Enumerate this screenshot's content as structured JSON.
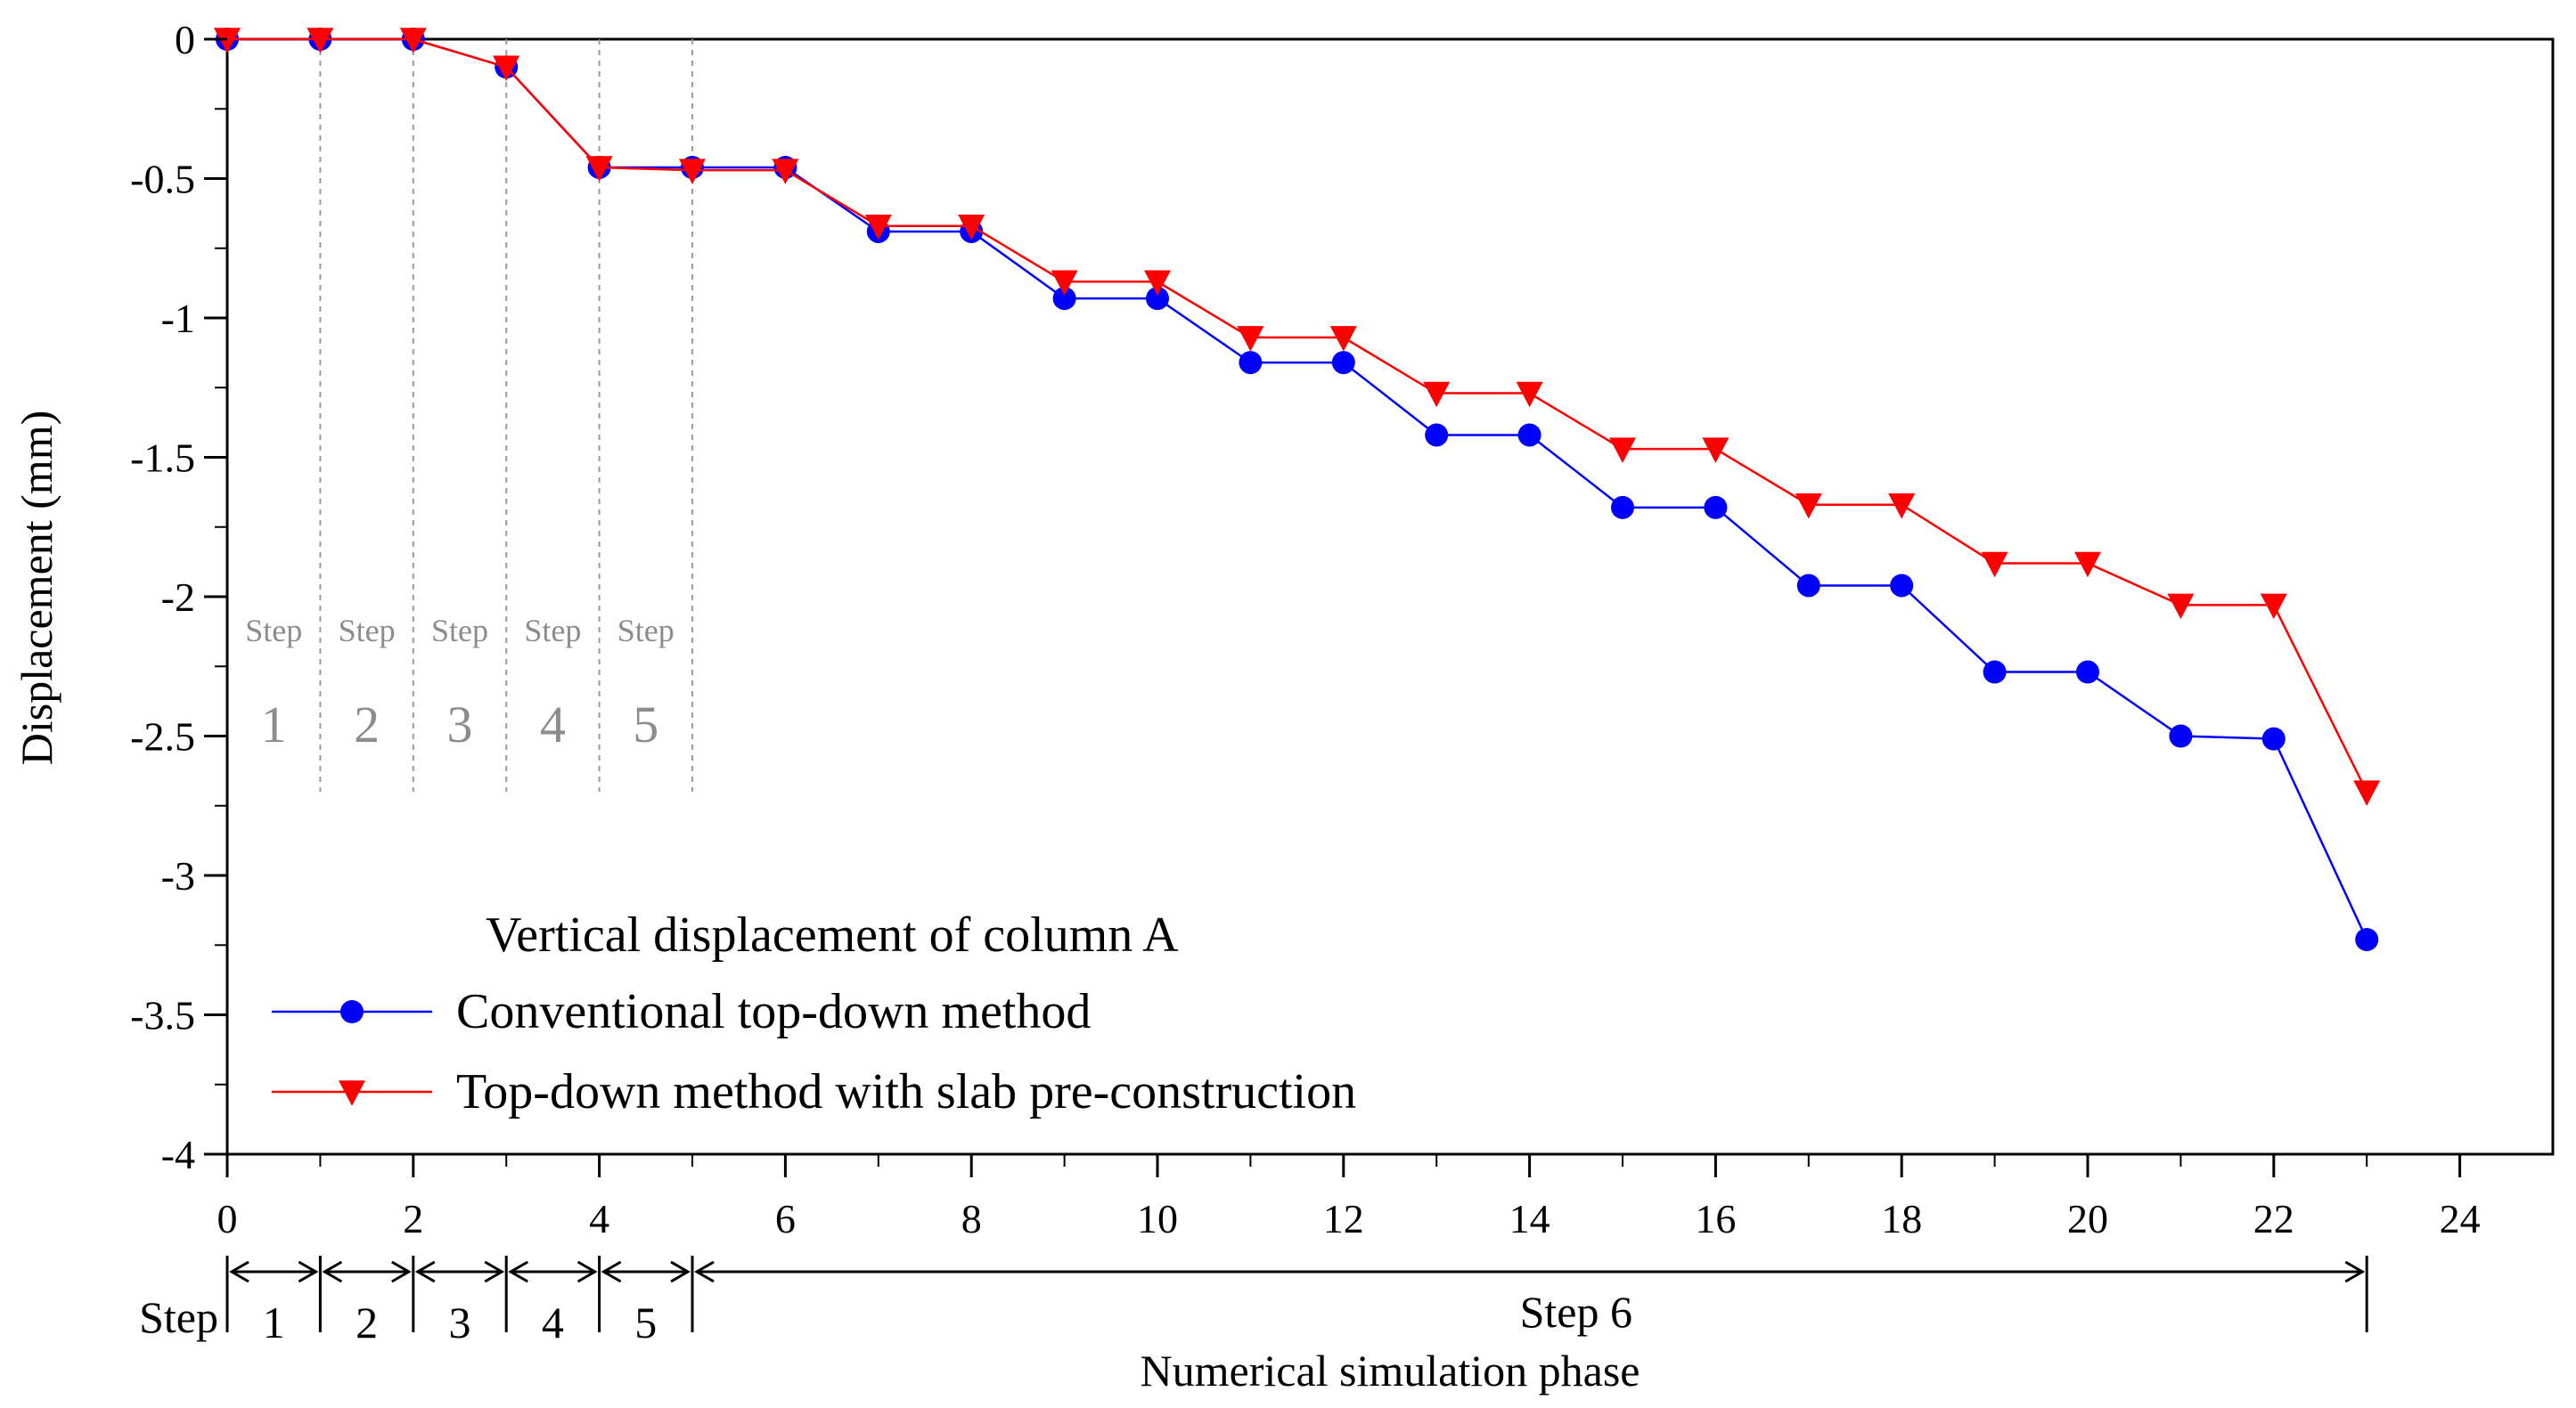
{
  "chart_data": {
    "type": "line",
    "title": "",
    "xlabel": "Numerical simulation phase",
    "ylabel": "Displacement (mm)",
    "xlim": [
      0,
      25
    ],
    "ylim": [
      -4,
      0
    ],
    "x_ticks": [
      "0",
      "2",
      "4",
      "6",
      "8",
      "10",
      "12",
      "14",
      "16",
      "18",
      "20",
      "22",
      "24"
    ],
    "x_tick_values": [
      0,
      2,
      4,
      6,
      8,
      10,
      12,
      14,
      16,
      18,
      20,
      22,
      24
    ],
    "y_ticks": [
      "0",
      "-0.5",
      "-1",
      "-1.5",
      "-2",
      "-2.5",
      "-3",
      "-3.5",
      "-4"
    ],
    "y_tick_values": [
      0,
      -0.5,
      -1,
      -1.5,
      -2,
      -2.5,
      -3,
      -3.5,
      -4
    ],
    "x": [
      0,
      1,
      2,
      3,
      4,
      5,
      6,
      7,
      8,
      9,
      10,
      11,
      12,
      13,
      14,
      15,
      16,
      17,
      18,
      19,
      20,
      21,
      22,
      23
    ],
    "series": [
      {
        "name": "Conventional top-down method",
        "color": "#0000ff",
        "marker": "circle",
        "values": [
          0,
          0,
          0,
          -0.1,
          -0.46,
          -0.46,
          -0.46,
          -0.69,
          -0.69,
          -0.93,
          -0.93,
          -1.16,
          -1.16,
          -1.42,
          -1.42,
          -1.68,
          -1.68,
          -1.96,
          -1.96,
          -2.27,
          -2.27,
          -2.5,
          -2.51,
          -3.23
        ]
      },
      {
        "name": "Top-down method with slab pre-construction",
        "color": "#ff0000",
        "marker": "triangle-down",
        "values": [
          0,
          0,
          0,
          -0.1,
          -0.46,
          -0.47,
          -0.47,
          -0.67,
          -0.67,
          -0.87,
          -0.87,
          -1.07,
          -1.07,
          -1.27,
          -1.27,
          -1.47,
          -1.47,
          -1.67,
          -1.67,
          -1.88,
          -1.88,
          -2.03,
          -2.03,
          -2.7
        ]
      }
    ],
    "legend_title": "Vertical displacement of column A",
    "legend_position": "bottom-left",
    "step_boundaries": [
      1,
      2,
      3,
      4,
      5
    ],
    "step_annotations": [
      {
        "top": "Step",
        "number": "1"
      },
      {
        "top": "Step",
        "number": "2"
      },
      {
        "top": "Step",
        "number": "3"
      },
      {
        "top": "Step",
        "number": "4"
      },
      {
        "top": "Step",
        "number": "5"
      }
    ],
    "phase_bar": {
      "prefix": "Step",
      "ranges": [
        {
          "start": 0,
          "end": 1,
          "label": "1"
        },
        {
          "start": 1,
          "end": 2,
          "label": "2"
        },
        {
          "start": 2,
          "end": 3,
          "label": "3"
        },
        {
          "start": 3,
          "end": 4,
          "label": "4"
        },
        {
          "start": 4,
          "end": 5,
          "label": "5"
        },
        {
          "start": 5,
          "end": 23,
          "label": "Step 6"
        }
      ]
    }
  }
}
